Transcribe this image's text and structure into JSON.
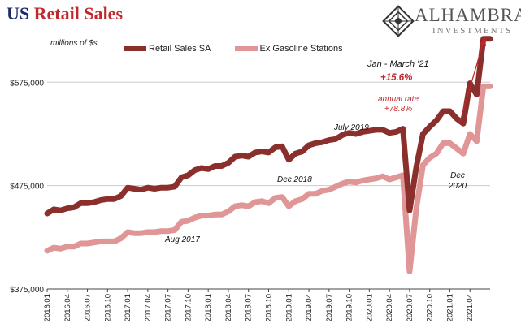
{
  "header": {
    "title_prefix": "US",
    "title_main": "Retail Sales",
    "brand_name": "ALHAMBRA",
    "brand_sub": "INVESTMENTS",
    "units": "millions of $s"
  },
  "colors": {
    "retail": "#8b2f2c",
    "exgas": "#e09596",
    "title_blue": "#1f2a6b",
    "accent_red": "#c0282d",
    "grid": "#cccccc"
  },
  "annotations": {
    "jan_march": "Jan - March '21",
    "pct_change": "+15.6%",
    "annual_rate_label": "annual rate",
    "annual_rate": "+78.8%",
    "july2019": "July 2019",
    "dec2018": "Dec 2018",
    "dec2020_a": "Dec",
    "dec2020_b": "2020",
    "aug2017": "Aug 2017"
  },
  "chart_data": {
    "type": "line",
    "ylim": [
      375000,
      620000
    ],
    "yticks": [
      375000,
      475000,
      575000
    ],
    "ytick_labels": [
      "$375,000",
      "$475,000",
      "$575,000"
    ],
    "xtick_labels": [
      "2016.01",
      "2016.04",
      "2016.07",
      "2016.10",
      "2017.01",
      "2017.04",
      "2017.07",
      "2017.10",
      "2018.01",
      "2018.04",
      "2018.07",
      "2018.10",
      "2019.01",
      "2019.04",
      "2019.07",
      "2019.10",
      "2020.01",
      "2020.04",
      "2020.07",
      "2020.10",
      "2021.01",
      "2021.04"
    ],
    "grid": "horizontal",
    "legend": "top",
    "series": [
      {
        "name": "Retail Sales SA",
        "values": [
          448000,
          452000,
          451000,
          453000,
          454000,
          458000,
          458000,
          459000,
          461000,
          462000,
          462000,
          465000,
          473000,
          472000,
          471000,
          473000,
          472000,
          473000,
          473000,
          474000,
          483000,
          485000,
          490000,
          492000,
          491000,
          494000,
          494000,
          497000,
          503000,
          504000,
          503000,
          507000,
          508000,
          507000,
          512000,
          513000,
          500000,
          506000,
          508000,
          514000,
          516000,
          517000,
          519000,
          520000,
          524000,
          526000,
          525000,
          527000,
          528000,
          529000,
          529000,
          526000,
          527000,
          530000,
          451000,
          493000,
          525000,
          532000,
          538000,
          547000,
          547000,
          540000,
          535000,
          574000,
          563000,
          617000,
          617000
        ]
      },
      {
        "name": "Ex Gasoline Stations",
        "values": [
          412000,
          415000,
          414000,
          416000,
          416000,
          419000,
          419000,
          420000,
          421000,
          421000,
          421000,
          424000,
          430000,
          429000,
          429000,
          430000,
          430000,
          431000,
          431000,
          432000,
          440000,
          441000,
          444000,
          446000,
          446000,
          447000,
          447000,
          450000,
          455000,
          456000,
          455000,
          459000,
          460000,
          458000,
          463000,
          464000,
          455000,
          460000,
          462000,
          467000,
          467000,
          470000,
          471000,
          474000,
          477000,
          479000,
          478000,
          480000,
          481000,
          482000,
          484000,
          481000,
          483000,
          485000,
          392000,
          453000,
          495000,
          502000,
          506000,
          516000,
          516000,
          511000,
          506000,
          525000,
          518000,
          571000,
          571000
        ]
      }
    ]
  }
}
